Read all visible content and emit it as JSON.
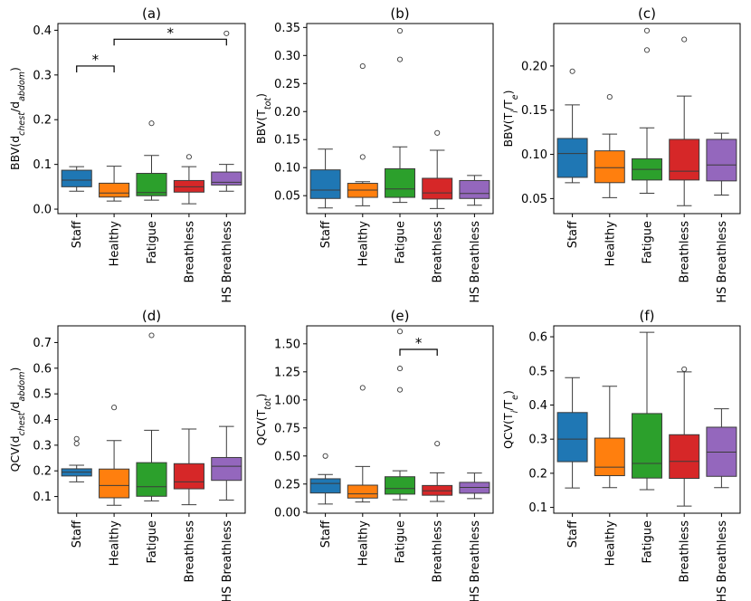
{
  "figure": {
    "categories": [
      "Staff",
      "Healthy",
      "Fatigue",
      "Breathless",
      "HS Breathless"
    ],
    "colors": [
      "#1f77b4",
      "#ff7f0e",
      "#2ca02c",
      "#d62728",
      "#9467bd"
    ]
  },
  "chart_data": [
    {
      "type": "box",
      "title": "(a)",
      "ylabel_main": "BBV(d",
      "ylabel_sub1": "chest",
      "ylabel_mid": "/d",
      "ylabel_sub2": "abdom",
      "ylabel_end": ")",
      "ylim": [
        -0.01,
        0.415
      ],
      "yticks": [
        0.0,
        0.1,
        0.2,
        0.3,
        0.4
      ],
      "ytick_labels": [
        "0.0",
        "0.1",
        "0.2",
        "0.3",
        "0.4"
      ],
      "boxes": [
        {
          "category": "Staff",
          "whisker_low": 0.04,
          "q1": 0.05,
          "median": 0.065,
          "q3": 0.087,
          "whisker_high": 0.095,
          "outliers": []
        },
        {
          "category": "Healthy",
          "whisker_low": 0.018,
          "q1": 0.027,
          "median": 0.036,
          "q3": 0.058,
          "whisker_high": 0.096,
          "outliers": []
        },
        {
          "category": "Fatigue",
          "whisker_low": 0.02,
          "q1": 0.03,
          "median": 0.037,
          "q3": 0.08,
          "whisker_high": 0.12,
          "outliers": [
            0.192
          ]
        },
        {
          "category": "Breathless",
          "whisker_low": 0.012,
          "q1": 0.038,
          "median": 0.05,
          "q3": 0.064,
          "whisker_high": 0.095,
          "outliers": [
            0.117
          ]
        },
        {
          "category": "HS Breathless",
          "whisker_low": 0.04,
          "q1": 0.054,
          "median": 0.06,
          "q3": 0.083,
          "whisker_high": 0.1,
          "outliers": [
            0.393
          ]
        }
      ],
      "annotations": [
        {
          "from": 0,
          "to": 1,
          "y": 0.32,
          "text": "*"
        },
        {
          "from": 1,
          "to": 4,
          "y": 0.38,
          "text": "*"
        }
      ]
    },
    {
      "type": "box",
      "title": "(b)",
      "ylabel_main": "BBV(T",
      "ylabel_sub1": "tot",
      "ylabel_mid": "",
      "ylabel_sub2": "",
      "ylabel_end": ")",
      "ylim": [
        0.018,
        0.357
      ],
      "yticks": [
        0.05,
        0.1,
        0.15,
        0.2,
        0.25,
        0.3,
        0.35
      ],
      "ytick_labels": [
        "0.05",
        "0.10",
        "0.15",
        "0.20",
        "0.25",
        "0.30",
        "0.35"
      ],
      "boxes": [
        {
          "category": "Staff",
          "whisker_low": 0.028,
          "q1": 0.045,
          "median": 0.06,
          "q3": 0.096,
          "whisker_high": 0.133,
          "outliers": []
        },
        {
          "category": "Healthy",
          "whisker_low": 0.032,
          "q1": 0.047,
          "median": 0.06,
          "q3": 0.072,
          "whisker_high": 0.075,
          "outliers": [
            0.119,
            0.281
          ]
        },
        {
          "category": "Fatigue",
          "whisker_low": 0.038,
          "q1": 0.047,
          "median": 0.062,
          "q3": 0.098,
          "whisker_high": 0.137,
          "outliers": [
            0.293,
            0.344
          ]
        },
        {
          "category": "Breathless",
          "whisker_low": 0.027,
          "q1": 0.044,
          "median": 0.055,
          "q3": 0.081,
          "whisker_high": 0.131,
          "outliers": [
            0.162
          ]
        },
        {
          "category": "HS Breathless",
          "whisker_low": 0.033,
          "q1": 0.045,
          "median": 0.054,
          "q3": 0.077,
          "whisker_high": 0.086,
          "outliers": []
        }
      ],
      "annotations": []
    },
    {
      "type": "box",
      "title": "(c)",
      "ylabel_main": "BBV(T",
      "ylabel_sub1": "i",
      "ylabel_mid": "/T",
      "ylabel_sub2": "e",
      "ylabel_end": ")",
      "ylim": [
        0.033,
        0.248
      ],
      "yticks": [
        0.05,
        0.1,
        0.15,
        0.2
      ],
      "ytick_labels": [
        "0.05",
        "0.10",
        "0.15",
        "0.20"
      ],
      "boxes": [
        {
          "category": "Staff",
          "whisker_low": 0.068,
          "q1": 0.074,
          "median": 0.101,
          "q3": 0.118,
          "whisker_high": 0.156,
          "outliers": [
            0.194
          ]
        },
        {
          "category": "Healthy",
          "whisker_low": 0.051,
          "q1": 0.068,
          "median": 0.085,
          "q3": 0.104,
          "whisker_high": 0.123,
          "outliers": [
            0.165
          ]
        },
        {
          "category": "Fatigue",
          "whisker_low": 0.056,
          "q1": 0.071,
          "median": 0.083,
          "q3": 0.095,
          "whisker_high": 0.13,
          "outliers": [
            0.218,
            0.24
          ]
        },
        {
          "category": "Breathless",
          "whisker_low": 0.042,
          "q1": 0.071,
          "median": 0.081,
          "q3": 0.117,
          "whisker_high": 0.166,
          "outliers": [
            0.23
          ]
        },
        {
          "category": "HS Breathless",
          "whisker_low": 0.054,
          "q1": 0.07,
          "median": 0.088,
          "q3": 0.117,
          "whisker_high": 0.124,
          "outliers": []
        }
      ],
      "annotations": []
    },
    {
      "type": "box",
      "title": "(d)",
      "ylabel_main": "QCV(d",
      "ylabel_sub1": "chest",
      "ylabel_mid": "/d",
      "ylabel_sub2": "abdom",
      "ylabel_end": ")",
      "ylim": [
        0.035,
        0.765
      ],
      "yticks": [
        0.1,
        0.2,
        0.3,
        0.4,
        0.5,
        0.6,
        0.7
      ],
      "ytick_labels": [
        "0.1",
        "0.2",
        "0.3",
        "0.4",
        "0.5",
        "0.6",
        "0.7"
      ],
      "boxes": [
        {
          "category": "Staff",
          "whisker_low": 0.157,
          "q1": 0.18,
          "median": 0.195,
          "q3": 0.208,
          "whisker_high": 0.222,
          "outliers": [
            0.306,
            0.325
          ]
        },
        {
          "category": "Healthy",
          "whisker_low": 0.066,
          "q1": 0.095,
          "median": 0.143,
          "q3": 0.207,
          "whisker_high": 0.318,
          "outliers": [
            0.447
          ]
        },
        {
          "category": "Fatigue",
          "whisker_low": 0.083,
          "q1": 0.101,
          "median": 0.138,
          "q3": 0.232,
          "whisker_high": 0.358,
          "outliers": [
            0.728
          ]
        },
        {
          "category": "Breathless",
          "whisker_low": 0.068,
          "q1": 0.13,
          "median": 0.157,
          "q3": 0.228,
          "whisker_high": 0.363,
          "outliers": []
        },
        {
          "category": "HS Breathless",
          "whisker_low": 0.086,
          "q1": 0.163,
          "median": 0.218,
          "q3": 0.252,
          "whisker_high": 0.373,
          "outliers": []
        }
      ],
      "annotations": []
    },
    {
      "type": "box",
      "title": "(e)",
      "ylabel_main": "QCV(T",
      "ylabel_sub1": "tot",
      "ylabel_mid": "",
      "ylabel_sub2": "",
      "ylabel_end": ")",
      "ylim": [
        -0.01,
        1.66
      ],
      "yticks": [
        0.0,
        0.25,
        0.5,
        0.75,
        1.0,
        1.25,
        1.5
      ],
      "ytick_labels": [
        "0.00",
        "0.25",
        "0.50",
        "0.75",
        "1.00",
        "1.25",
        "1.50"
      ],
      "boxes": [
        {
          "category": "Staff",
          "whisker_low": 0.072,
          "q1": 0.17,
          "median": 0.255,
          "q3": 0.297,
          "whisker_high": 0.335,
          "outliers": [
            0.5
          ]
        },
        {
          "category": "Healthy",
          "whisker_low": 0.09,
          "q1": 0.125,
          "median": 0.162,
          "q3": 0.24,
          "whisker_high": 0.406,
          "outliers": [
            1.108
          ]
        },
        {
          "category": "Fatigue",
          "whisker_low": 0.11,
          "q1": 0.16,
          "median": 0.21,
          "q3": 0.315,
          "whisker_high": 0.368,
          "outliers": [
            1.09,
            1.28,
            1.61
          ]
        },
        {
          "category": "Breathless",
          "whisker_low": 0.095,
          "q1": 0.15,
          "median": 0.19,
          "q3": 0.237,
          "whisker_high": 0.35,
          "outliers": [
            0.61
          ]
        },
        {
          "category": "HS Breathless",
          "whisker_low": 0.12,
          "q1": 0.168,
          "median": 0.22,
          "q3": 0.265,
          "whisker_high": 0.348,
          "outliers": []
        }
      ],
      "annotations": [
        {
          "from": 2,
          "to": 3,
          "y": 1.45,
          "text": "*"
        }
      ]
    },
    {
      "type": "box",
      "title": "(f)",
      "ylabel_main": "QCV(T",
      "ylabel_sub1": "i",
      "ylabel_mid": "/T",
      "ylabel_sub2": "e",
      "ylabel_end": ")",
      "ylim": [
        0.083,
        0.632
      ],
      "yticks": [
        0.1,
        0.2,
        0.3,
        0.4,
        0.5,
        0.6
      ],
      "ytick_labels": [
        "0.1",
        "0.2",
        "0.3",
        "0.4",
        "0.5",
        "0.6"
      ],
      "boxes": [
        {
          "category": "Staff",
          "whisker_low": 0.157,
          "q1": 0.234,
          "median": 0.3,
          "q3": 0.378,
          "whisker_high": 0.48,
          "outliers": []
        },
        {
          "category": "Healthy",
          "whisker_low": 0.158,
          "q1": 0.193,
          "median": 0.218,
          "q3": 0.303,
          "whisker_high": 0.455,
          "outliers": []
        },
        {
          "category": "Fatigue",
          "whisker_low": 0.152,
          "q1": 0.186,
          "median": 0.229,
          "q3": 0.375,
          "whisker_high": 0.613,
          "outliers": []
        },
        {
          "category": "Breathless",
          "whisker_low": 0.104,
          "q1": 0.185,
          "median": 0.235,
          "q3": 0.313,
          "whisker_high": 0.497,
          "outliers": [
            0.505
          ]
        },
        {
          "category": "HS Breathless",
          "whisker_low": 0.158,
          "q1": 0.191,
          "median": 0.262,
          "q3": 0.335,
          "whisker_high": 0.389,
          "outliers": []
        }
      ],
      "annotations": []
    }
  ]
}
